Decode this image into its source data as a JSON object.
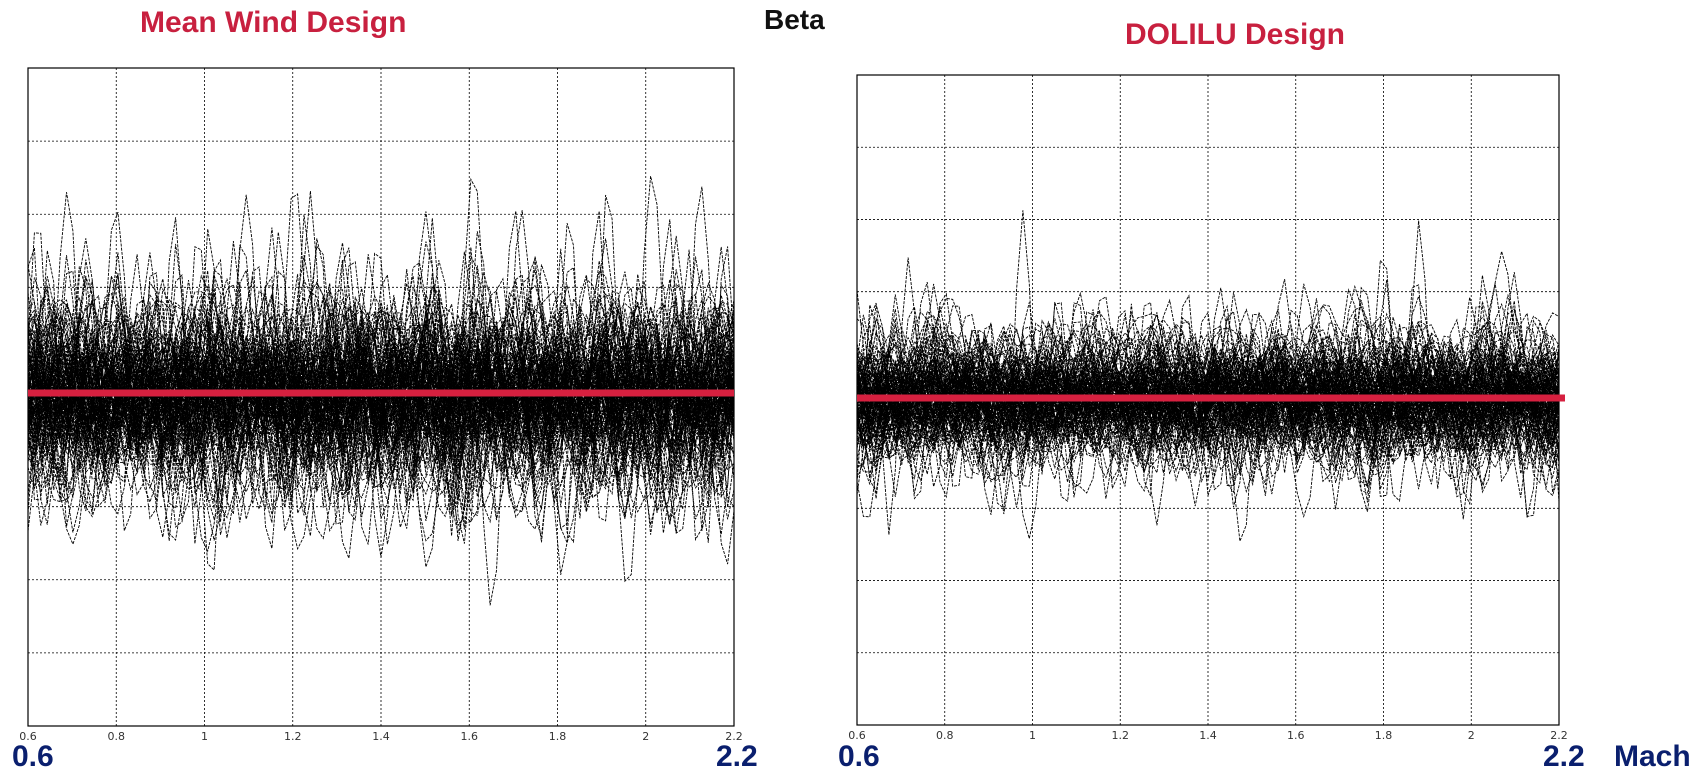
{
  "header": {
    "center_title": "Beta"
  },
  "axis_labels": {
    "left": {
      "start": "0.6",
      "end": "2.2"
    },
    "right": {
      "start": "0.6",
      "end": "2.2",
      "xlabel": "Mach"
    }
  },
  "colors": {
    "traces": "#000000",
    "mean_line": "#d6203f",
    "title": "#c8203f",
    "axis_numbers": "#0a1f6e",
    "grid": "#000000"
  },
  "chart_data": [
    {
      "type": "line",
      "title": "Mean Wind Design",
      "xlabel": "",
      "ylabel": "",
      "xlim": [
        0.6,
        2.2
      ],
      "x_ticks": [
        "0.6",
        "0.8",
        "1",
        "1.2",
        "1.4",
        "1.6",
        "1.8",
        "2",
        "2.2"
      ],
      "grid": true,
      "y_gridlines": 8,
      "mean_line_level": 0.0,
      "series_description": "Dense ensemble of Monte Carlo beta traces (dashed black lines) centered on zero with wide spread",
      "ensemble_spread": 0.62,
      "ensemble_count": 140
    },
    {
      "type": "line",
      "title": "DOLILU Design",
      "xlabel": "Mach",
      "ylabel": "",
      "xlim": [
        0.6,
        2.2
      ],
      "x_ticks": [
        "0.6",
        "0.8",
        "1",
        "1.2",
        "1.4",
        "1.6",
        "1.8",
        "2",
        "2.2"
      ],
      "grid": true,
      "y_gridlines": 8,
      "mean_line_level": 0.0,
      "series_description": "Dense ensemble of Monte Carlo beta traces (dashed black lines) centered on zero with narrower spread",
      "ensemble_spread": 0.42,
      "ensemble_count": 140
    }
  ]
}
